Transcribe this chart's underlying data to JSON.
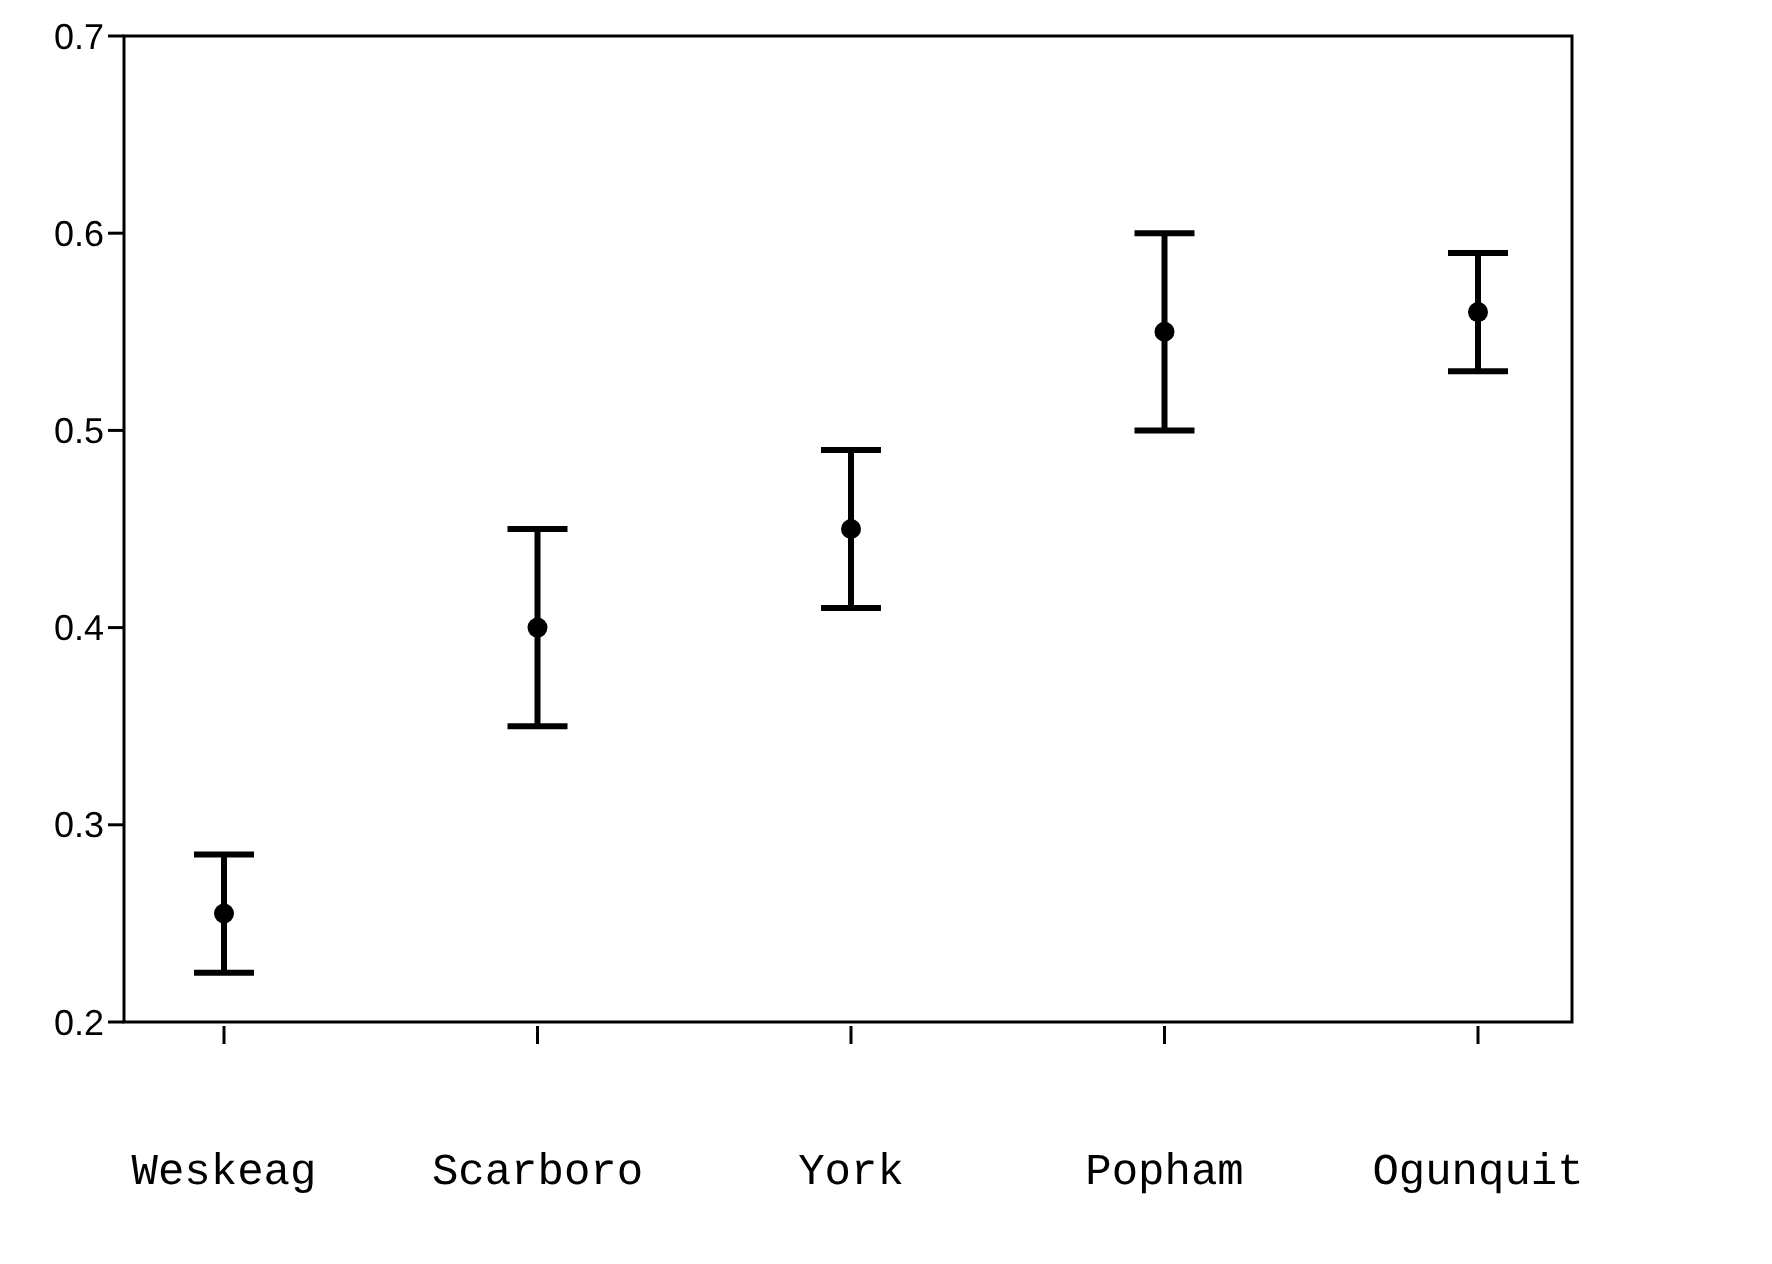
{
  "chart_data": {
    "type": "scatter",
    "categories": [
      "Weskeag",
      "Scarboro",
      "York",
      "Popham",
      "Ogunquit"
    ],
    "values": [
      0.255,
      0.4,
      0.45,
      0.55,
      0.56
    ],
    "errors": [
      0.03,
      0.05,
      0.04,
      0.05,
      0.03
    ],
    "color": "#000000",
    "marker": "circle",
    "ylim": [
      0.2,
      0.7
    ],
    "yticks": [
      0.2,
      0.3,
      0.4,
      0.5,
      0.6,
      0.7
    ],
    "grid": false
  }
}
